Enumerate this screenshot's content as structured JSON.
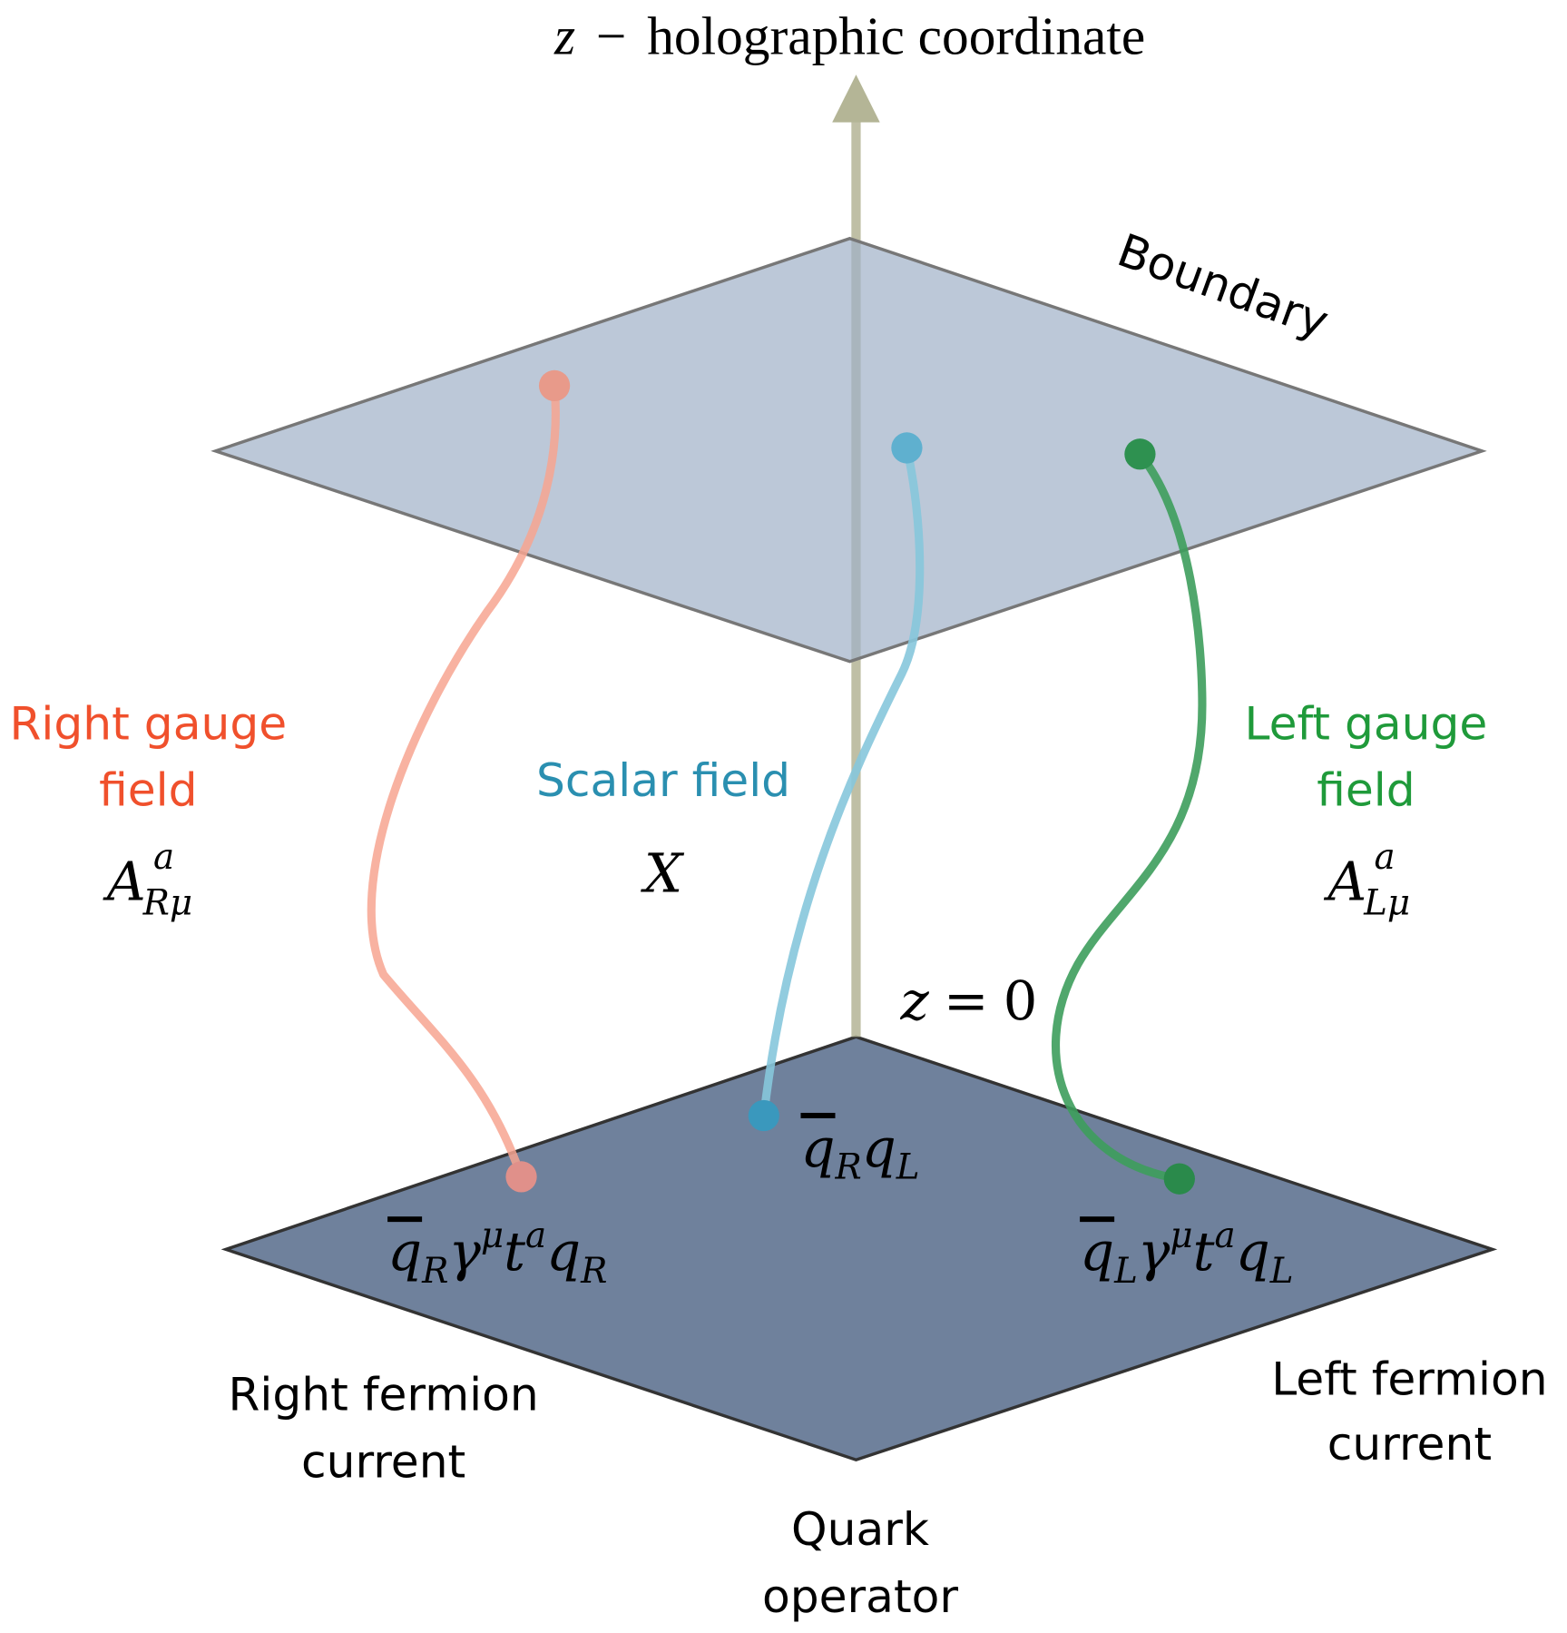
{
  "header": {
    "axis_symbol": "z",
    "dash": "−",
    "title": "holographic coordinate"
  },
  "boundary": {
    "label": "Boundary"
  },
  "origin": {
    "symbol": "z",
    "equals": "=",
    "value": "0"
  },
  "fields": [
    {
      "line1": "Right gauge",
      "line2": "field",
      "symbol": {
        "base": "A",
        "sup": "a",
        "sub": "Rμ"
      }
    },
    {
      "line1": "Scalar field",
      "symbol": {
        "base": "X"
      }
    },
    {
      "line1": "Left gauge",
      "line2": "field",
      "symbol": {
        "base": "A",
        "sup": "a",
        "sub": "Lμ"
      }
    }
  ],
  "operators": [
    {
      "parts": [
        "q",
        "R",
        "γ",
        "μ",
        "t",
        "a",
        "q",
        "R"
      ],
      "line1": "Right fermion",
      "line2": "current"
    },
    {
      "parts": [
        "q",
        "R",
        "q",
        "L"
      ],
      "line1": "Quark",
      "line2": "operator"
    },
    {
      "parts": [
        "q",
        "L",
        "γ",
        "μ",
        "t",
        "a",
        "q",
        "L"
      ],
      "line1": "Left fermion",
      "line2": "current"
    }
  ]
}
